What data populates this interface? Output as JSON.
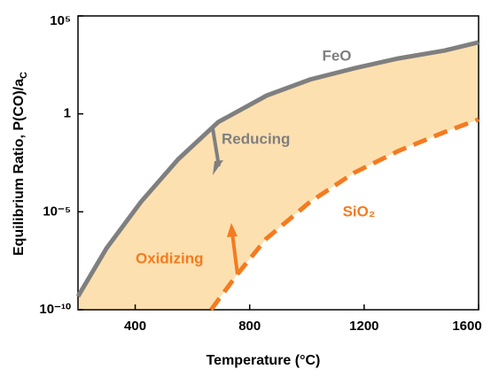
{
  "chart_data": {
    "type": "line",
    "xlabel": "Temperature (°C)",
    "ylabel": "Equilibrium Ratio, P(CO)/a",
    "ylabel_sub": "C",
    "xlim": [
      200,
      1600
    ],
    "xticks": [
      400,
      800,
      1200,
      1600
    ],
    "ylim": [
      1e-10,
      100000
    ],
    "yscale": "log",
    "yticks": [
      {
        "value": 1e-10,
        "label": "10⁻¹⁰"
      },
      {
        "value": 1e-05,
        "label": "10⁻⁵"
      },
      1,
      {
        "value": 100000,
        "label": "10⁵"
      }
    ],
    "fill_between": "#fde0b0",
    "series": [
      {
        "name": "FeO",
        "color": "#7f7f7f",
        "linestyle": "solid",
        "x": [
          200,
          300,
          420,
          550,
          690,
          860,
          1010,
          1170,
          1320,
          1480,
          1600
        ],
        "values": [
          4.8e-10,
          1.4e-07,
          3.2e-05,
          0.0048,
          0.38,
          8.7,
          56,
          220,
          680,
          1700,
          4500
        ]
      },
      {
        "name": "SiO₂",
        "color": "#f47b20",
        "linestyle": "dashed",
        "x": [
          665,
          757,
          857,
          1011,
          1166,
          1321,
          1476,
          1600
        ],
        "values": [
          1e-10,
          6.5e-09,
          4.1e-07,
          3.2e-05,
          0.001,
          0.013,
          0.11,
          0.52
        ]
      }
    ],
    "annotations": [
      "Reducing",
      "Oxidizing"
    ]
  }
}
